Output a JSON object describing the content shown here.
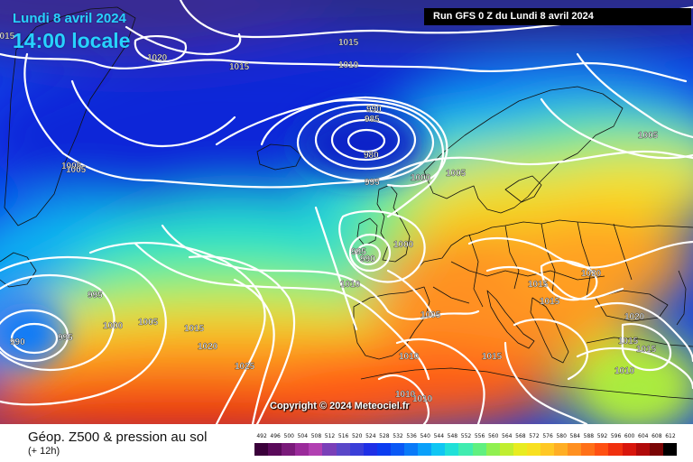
{
  "header": {
    "date_line": "Lundi 8 avril 2024",
    "time_line": "14:00 locale",
    "run_info": "Run GFS 0 Z du Lundi 8 avril 2024"
  },
  "map": {
    "copyright": "Copyright © 2024 Meteociel.fr",
    "isobar_labels": [
      "1015",
      "1020",
      "1015",
      "1015",
      "1010",
      "1005",
      "1005",
      "990",
      "985",
      "980",
      "995",
      "1000",
      "1005",
      "1005",
      "995",
      "990",
      "1000",
      "1010",
      "1005",
      "995",
      "1000",
      "990",
      "995",
      "1005",
      "1015",
      "1020",
      "1025",
      "1015",
      "1015",
      "1020",
      "1020",
      "1015",
      "1015",
      "1010",
      "1015",
      "1010",
      "1010",
      "1010"
    ]
  },
  "footer": {
    "title": "Géop. Z500 & pression au sol",
    "subtitle": "(+ 12h)"
  },
  "scale": {
    "labels": [
      "492",
      "496",
      "500",
      "504",
      "508",
      "512",
      "516",
      "520",
      "524",
      "528",
      "532",
      "536",
      "540",
      "544",
      "548",
      "552",
      "556",
      "560",
      "564",
      "568",
      "572",
      "576",
      "580",
      "584",
      "588",
      "592",
      "596",
      "600",
      "604",
      "608",
      "612"
    ],
    "colors": [
      "#3a003a",
      "#5a0a5a",
      "#7a1a7a",
      "#9a2a9a",
      "#b13fb1",
      "#7a3fb8",
      "#5a47c8",
      "#3a3ed8",
      "#1f2fe6",
      "#0b3cf0",
      "#0a58f5",
      "#0a7af8",
      "#0aa0fa",
      "#10c6f3",
      "#20e0d8",
      "#40ecb0",
      "#60f080",
      "#90f050",
      "#c0ee30",
      "#e8ec20",
      "#f8e020",
      "#ffc824",
      "#ffae24",
      "#ff9020",
      "#ff7018",
      "#ff5012",
      "#f0300e",
      "#d8160c",
      "#b00a0a",
      "#7a0505",
      "#000000"
    ]
  }
}
